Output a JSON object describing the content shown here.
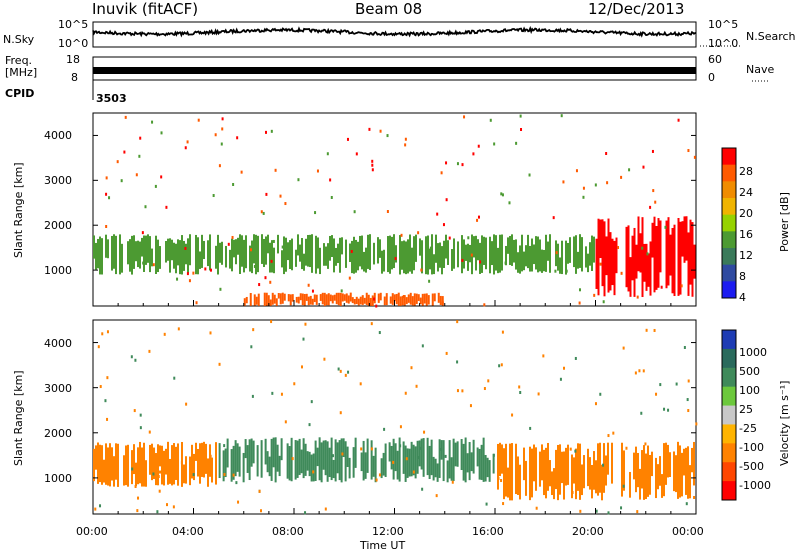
{
  "header": {
    "station": "Inuvik (fitACF)",
    "beam": "Beam 08",
    "date": "12/Dec/2013"
  },
  "top_panels": {
    "nsky_label": "N.Sky",
    "nsky_ticks": [
      "10^5",
      "10^0"
    ],
    "nsearch_label": "N.Search",
    "nsearch_ticks": [
      "10^5",
      "10^0"
    ],
    "freq_label": "Freq.",
    "freq_unit": "[MHz]",
    "freq_ticks": [
      "18",
      "8"
    ],
    "nave_label": "Nave",
    "nave_ticks": [
      "60",
      "0"
    ],
    "cpid_label": "CPID",
    "cpid_value": "3503"
  },
  "chart_data": [
    {
      "type": "heatmap",
      "parameter": "power",
      "ylabel": "Slant Range [km]",
      "y_ticks": [
        "1000",
        "2000",
        "3000",
        "4000"
      ],
      "ylim": [
        200,
        4500
      ],
      "x_ticks": [
        "00:00",
        "04:00",
        "08:00",
        "12:00",
        "16:00",
        "20:00",
        "00:00"
      ],
      "colorbar_label": "Power [dB]",
      "colorbar_ticks": [
        "28",
        "24",
        "20",
        "16",
        "12",
        "8",
        "4"
      ],
      "colorbar_colors": [
        "#ff0000",
        "#ff5a00",
        "#f08c00",
        "#f0b400",
        "#96d200",
        "#4c9a32",
        "#3a7a5a",
        "#2f4aa0",
        "#1c1cf0"
      ],
      "echo_bands": [
        {
          "time_start": "00:00",
          "time_end": "20:00",
          "range_km": [
            900,
            1800
          ],
          "typical": "12-20 dB"
        },
        {
          "time_start": "06:00",
          "time_end": "14:00",
          "range_km": [
            200,
            500
          ],
          "typical": "24-28 dB"
        },
        {
          "time_start": "20:00",
          "time_end": "24:00",
          "range_km": [
            400,
            2200
          ],
          "typical": "28+ dB"
        }
      ]
    },
    {
      "type": "heatmap",
      "parameter": "velocity",
      "ylabel": "Slant Range [km]",
      "y_ticks": [
        "1000",
        "2000",
        "3000",
        "4000"
      ],
      "ylim": [
        200,
        4500
      ],
      "x_ticks": [
        "00:00",
        "04:00",
        "08:00",
        "12:00",
        "16:00",
        "20:00",
        "00:00"
      ],
      "xlabel": "Time UT",
      "colorbar_label": "Velocity [m s⁻¹]",
      "colorbar_ticks": [
        "1000",
        "500",
        "100",
        "25",
        "-25",
        "-100",
        "-500",
        "-1000"
      ],
      "colorbar_colors": [
        "#1e3cb4",
        "#2a6a5c",
        "#3f8a5a",
        "#6cc83c",
        "#c8c8c8",
        "#ffb400",
        "#ff8200",
        "#ff4600",
        "#ff0000"
      ],
      "echo_bands": [
        {
          "time_start": "00:00",
          "time_end": "05:00",
          "range_km": [
            800,
            1800
          ],
          "typical": "-100 to -500 m/s"
        },
        {
          "time_start": "05:00",
          "time_end": "16:00",
          "range_km": [
            900,
            1900
          ],
          "typical": "100 to 500 m/s"
        },
        {
          "time_start": "16:00",
          "time_end": "24:00",
          "range_km": [
            500,
            1800
          ],
          "typical": "-100 to -500 m/s"
        }
      ]
    }
  ]
}
